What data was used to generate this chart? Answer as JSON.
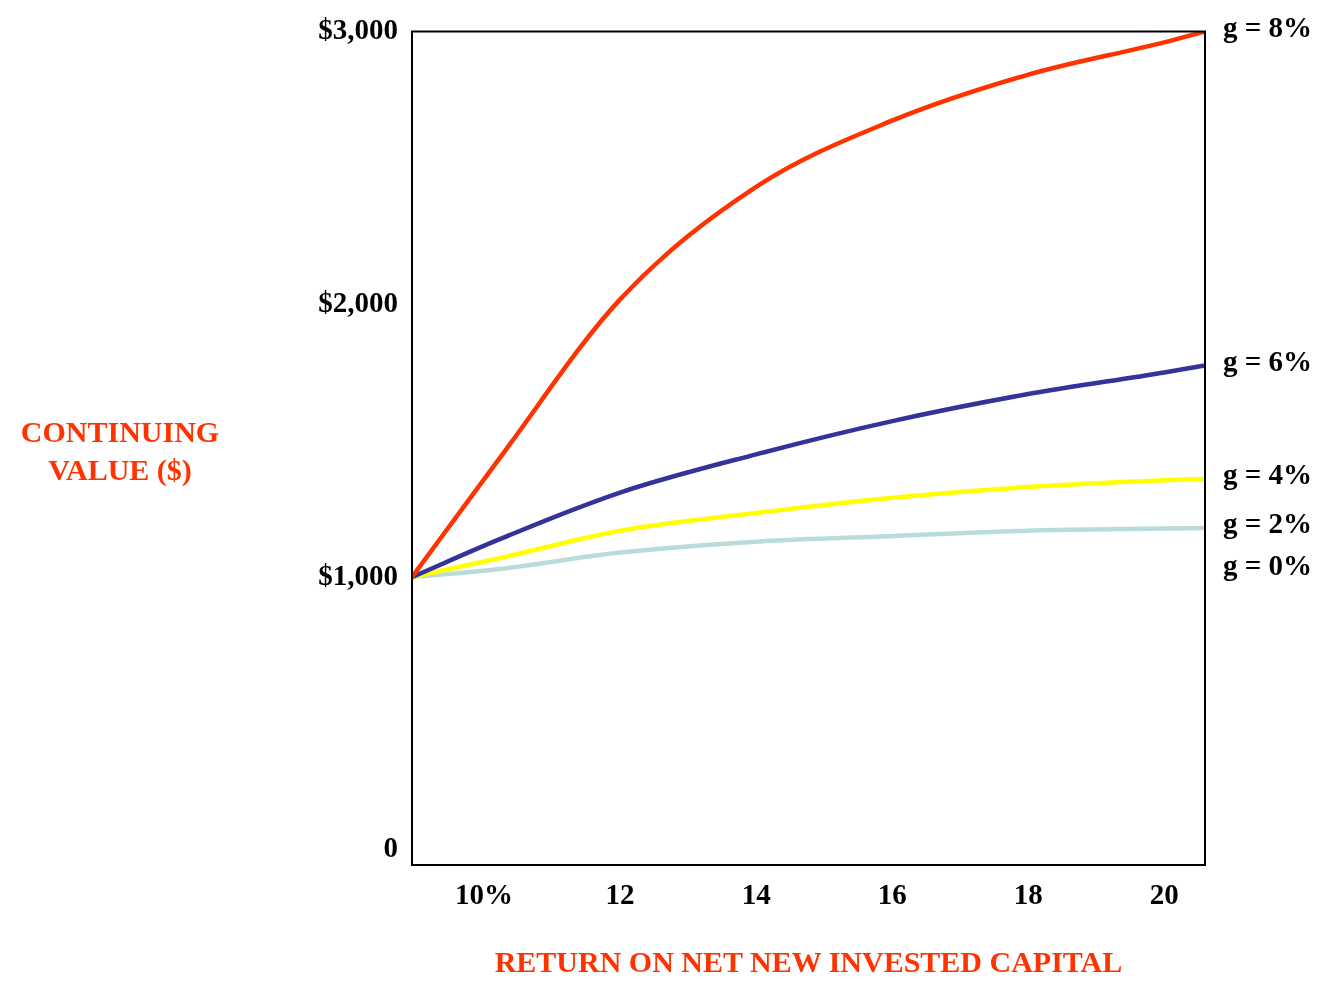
{
  "chart_data": {
    "type": "line",
    "xlabel": "RETURN ON NET NEW INVESTED CAPITAL",
    "ylabel": "CONTINUING VALUE ($)",
    "xlim": [
      8.94,
      20.6
    ],
    "xticks": [
      {
        "value": 10,
        "label": "10%"
      },
      12,
      14,
      16,
      18,
      20
    ],
    "ylim": [
      -55,
      3000
    ],
    "yticks": [
      {
        "value": 0,
        "label": "0"
      },
      {
        "value": 1000,
        "label": "$1,000"
      },
      {
        "value": 2000,
        "label": "$2,000"
      },
      {
        "value": 3000,
        "label": "$3,000"
      }
    ],
    "grid": false,
    "legend": false,
    "marker": "none",
    "line_style": "solid",
    "x": [
      8.94,
      10.24,
      12,
      14,
      15.97,
      17.98,
      20,
      20.6
    ],
    "series": [
      {
        "name": "g = 8%",
        "color": "#ff3300",
        "values": [
          1000,
          1440,
          2018,
          2430,
          2670,
          2840,
          2960,
          3000
        ]
      },
      {
        "name": "g = 6%",
        "color": "#333399",
        "values": [
          1000,
          1140,
          1310,
          1450,
          1570,
          1670,
          1750,
          1776
        ]
      },
      {
        "name": "g = 4%",
        "color": "#ffff00",
        "values": [
          1000,
          1070,
          1170,
          1235,
          1290,
          1330,
          1355,
          1360
        ]
      },
      {
        "name": "g = 2%",
        "color": "#b8dcdc",
        "values": [
          1000,
          1030,
          1090,
          1130,
          1150,
          1170,
          1178,
          1180
        ]
      }
    ],
    "annotations": [
      "g = 0%"
    ]
  }
}
